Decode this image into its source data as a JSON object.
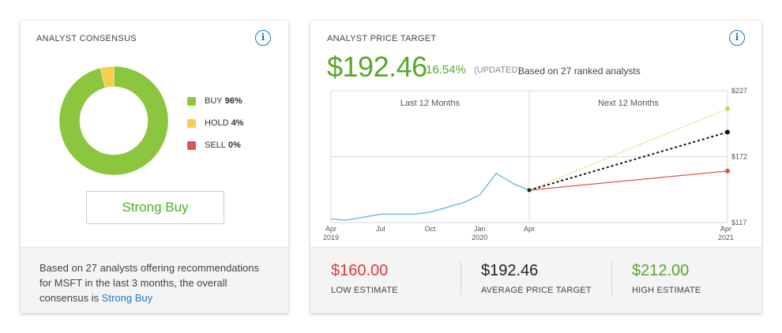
{
  "consensus": {
    "title": "ANALYST CONSENSUS",
    "info_label": "i",
    "legend": [
      {
        "label": "BUY",
        "pct": "96%",
        "value": 96,
        "color": "#8cc63f"
      },
      {
        "label": "HOLD",
        "pct": "4%",
        "value": 4,
        "color": "#f7cf4b"
      },
      {
        "label": "SELL",
        "pct": "0%",
        "value": 0,
        "color": "#e5504f"
      }
    ],
    "rating": "Strong Buy",
    "footer_text": "Based on 27 analysts offering recommendations for MSFT in the last 3 months, the overall consensus is",
    "footer_link": "Strong Buy"
  },
  "price_target": {
    "title": "ANALYST PRICE TARGET",
    "info_label": "i",
    "price": "$192.46",
    "change": "16.54%",
    "updated": "(UPDATED)",
    "basis": "Based on 27 ranked analysts",
    "estimates": {
      "low": {
        "value": "$160.00",
        "label": "LOW ESTIMATE"
      },
      "avg": {
        "value": "$192.46",
        "label": "AVERAGE PRICE TARGET"
      },
      "high": {
        "value": "$212.00",
        "label": "HIGH ESTIMATE"
      }
    },
    "colors": {
      "past": "#6cc0ea",
      "high": "#c3d94f",
      "avg": "#111111",
      "low": "#e05050"
    }
  },
  "chart_data": {
    "type": "line",
    "title": "",
    "section_labels": [
      "Last 12 Months",
      "Next 12 Months"
    ],
    "x_tick_labels": [
      {
        "text": "Apr",
        "sub": "2019",
        "t": 0
      },
      {
        "text": "Jul",
        "sub": "",
        "t": 3
      },
      {
        "text": "Oct",
        "sub": "",
        "t": 6
      },
      {
        "text": "Jan",
        "sub": "2020",
        "t": 9
      },
      {
        "text": "Apr",
        "sub": "",
        "t": 12
      },
      {
        "text": "Apr",
        "sub": "2021",
        "t": 24
      }
    ],
    "y_ticks": [
      "$227",
      "$172",
      "$117"
    ],
    "ylim": [
      117,
      227
    ],
    "xlim": [
      0,
      24
    ],
    "series": [
      {
        "key": "history",
        "values": [
          [
            0,
            120
          ],
          [
            0.9,
            119
          ],
          [
            1.8,
            121
          ],
          [
            3,
            124
          ],
          [
            4.2,
            124
          ],
          [
            5.1,
            124
          ],
          [
            6.1,
            126
          ],
          [
            7.1,
            130
          ],
          [
            8.1,
            134
          ],
          [
            9,
            140
          ],
          [
            10,
            158
          ],
          [
            11.1,
            149
          ],
          [
            12,
            144
          ]
        ]
      },
      {
        "key": "high",
        "values": [
          [
            12,
            144
          ],
          [
            24,
            212
          ]
        ]
      },
      {
        "key": "avg",
        "values": [
          [
            12,
            144
          ],
          [
            24,
            192.46
          ]
        ]
      },
      {
        "key": "low",
        "values": [
          [
            12,
            144
          ],
          [
            24,
            160
          ]
        ]
      }
    ]
  }
}
